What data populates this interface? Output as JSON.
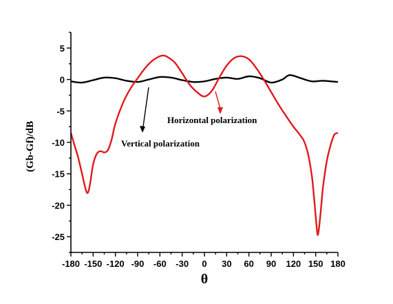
{
  "chart_data": {
    "type": "line",
    "xlabel": "θ",
    "ylabel": "(Gb-Gf)/dB",
    "xlim": [
      -180,
      180
    ],
    "ylim": [
      -27.5,
      7.5
    ],
    "x_ticks": [
      -180,
      -150,
      -120,
      -90,
      -60,
      -30,
      0,
      30,
      60,
      90,
      120,
      150,
      180
    ],
    "y_ticks": [
      5,
      0,
      -5,
      -10,
      -15,
      -20,
      -25
    ],
    "grid": false,
    "annotations": [
      {
        "text": "Horizontal polarization",
        "series": "Horizontal polarization"
      },
      {
        "text": "Vertical polarization",
        "series": "Vertical polarization"
      }
    ],
    "series": [
      {
        "name": "Vertical polarization",
        "color": "#000000",
        "points": [
          [
            -180,
            -0.3
          ],
          [
            -165,
            -0.5
          ],
          [
            -150,
            -0.1
          ],
          [
            -135,
            0.3
          ],
          [
            -120,
            0.2
          ],
          [
            -105,
            -0.2
          ],
          [
            -90,
            -0.4
          ],
          [
            -75,
            0.0
          ],
          [
            -60,
            0.4
          ],
          [
            -45,
            0.3
          ],
          [
            -30,
            -0.1
          ],
          [
            -15,
            -0.4
          ],
          [
            0,
            -0.3
          ],
          [
            15,
            0.1
          ],
          [
            30,
            0.3
          ],
          [
            45,
            0.1
          ],
          [
            60,
            0.5
          ],
          [
            75,
            0.2
          ],
          [
            90,
            -0.5
          ],
          [
            105,
            0.0
          ],
          [
            115,
            0.7
          ],
          [
            130,
            0.2
          ],
          [
            145,
            -0.3
          ],
          [
            160,
            -0.2
          ],
          [
            180,
            -0.4
          ]
        ]
      },
      {
        "name": "Horizontal polarization",
        "color": "#e0191c",
        "points": [
          [
            -180,
            -8.5
          ],
          [
            -175,
            -10.5
          ],
          [
            -170,
            -12.5
          ],
          [
            -165,
            -15
          ],
          [
            -160,
            -17.5
          ],
          [
            -157,
            -18
          ],
          [
            -154,
            -16.5
          ],
          [
            -150,
            -13.5
          ],
          [
            -145,
            -11.8
          ],
          [
            -140,
            -11.4
          ],
          [
            -135,
            -11.6
          ],
          [
            -130,
            -11.2
          ],
          [
            -125,
            -9.5
          ],
          [
            -120,
            -7
          ],
          [
            -110,
            -3.8
          ],
          [
            -100,
            -1.5
          ],
          [
            -90,
            0.2
          ],
          [
            -80,
            1.8
          ],
          [
            -70,
            3.0
          ],
          [
            -60,
            3.7
          ],
          [
            -55,
            3.8
          ],
          [
            -50,
            3.6
          ],
          [
            -40,
            2.7
          ],
          [
            -30,
            1.0
          ],
          [
            -20,
            -0.8
          ],
          [
            -10,
            -2.0
          ],
          [
            0,
            -2.7
          ],
          [
            10,
            -1.8
          ],
          [
            20,
            0.3
          ],
          [
            30,
            2.2
          ],
          [
            40,
            3.4
          ],
          [
            50,
            3.7
          ],
          [
            60,
            3.2
          ],
          [
            70,
            1.8
          ],
          [
            80,
            0.0
          ],
          [
            90,
            -2.0
          ],
          [
            100,
            -4.0
          ],
          [
            110,
            -5.8
          ],
          [
            120,
            -7.5
          ],
          [
            130,
            -9.0
          ],
          [
            135,
            -10.0
          ],
          [
            140,
            -12.0
          ],
          [
            145,
            -15.5
          ],
          [
            148,
            -19.0
          ],
          [
            151,
            -23.0
          ],
          [
            153,
            -24.7
          ],
          [
            156,
            -22.0
          ],
          [
            160,
            -17.0
          ],
          [
            165,
            -13.0
          ],
          [
            170,
            -10.5
          ],
          [
            175,
            -8.8
          ],
          [
            180,
            -8.5
          ]
        ]
      }
    ]
  }
}
